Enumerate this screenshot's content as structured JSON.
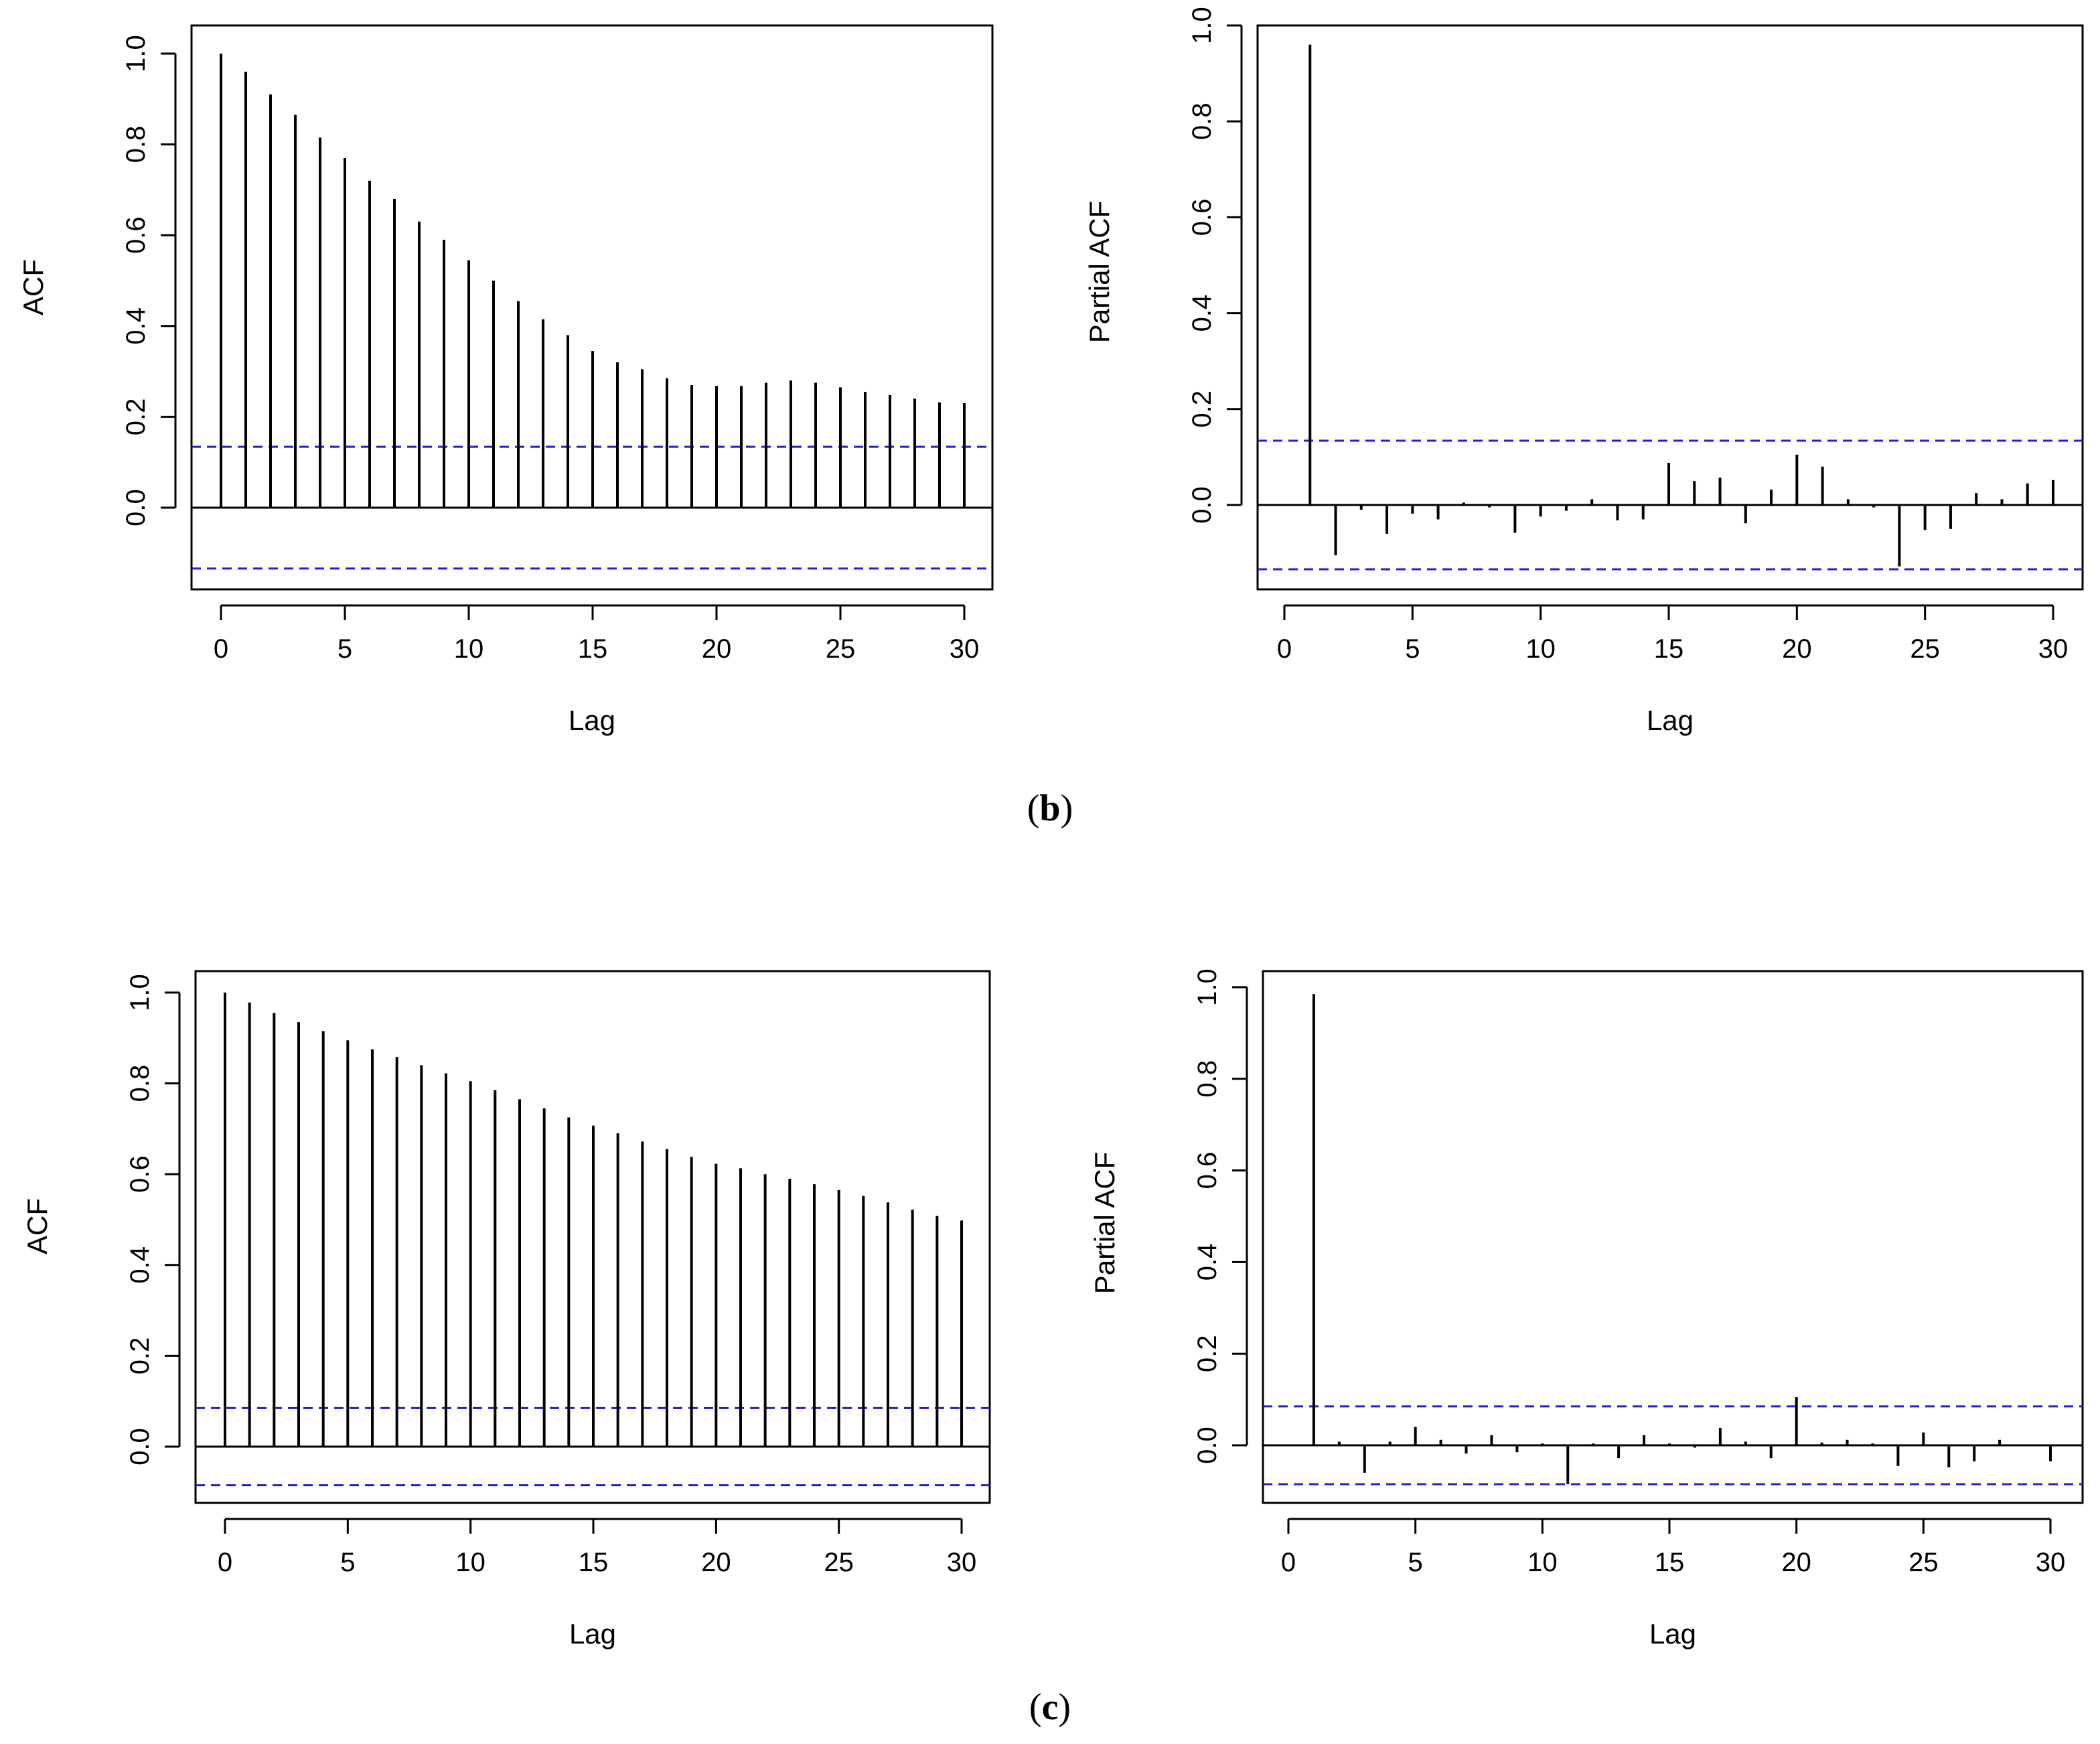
{
  "captions": {
    "b": {
      "open": "(",
      "letter": "b",
      "close": ")"
    },
    "c": {
      "open": "(",
      "letter": "c",
      "close": ")"
    }
  },
  "colors": {
    "bar": "#000000",
    "ci": "#1f1fd6",
    "axis": "#000000"
  },
  "chart_data": [
    {
      "id": "b-acf",
      "type": "bar",
      "title": "",
      "xlabel": "Lag",
      "ylabel": "ACF",
      "xlim": [
        0,
        30
      ],
      "ylim": [
        -0.18,
        1.0
      ],
      "xticks": [
        0,
        5,
        10,
        15,
        20,
        25,
        30
      ],
      "yticks": [
        0.0,
        0.2,
        0.4,
        0.6,
        0.8,
        1.0
      ],
      "ytick_labels": [
        "0.0",
        "0.2",
        "0.4",
        "0.6",
        "0.8",
        "1.0"
      ],
      "ci": 0.134,
      "lags": [
        0,
        1,
        2,
        3,
        4,
        5,
        6,
        7,
        8,
        9,
        10,
        11,
        12,
        13,
        14,
        15,
        16,
        17,
        18,
        19,
        20,
        21,
        22,
        23,
        24,
        25,
        26,
        27,
        28,
        29,
        30
      ],
      "values": [
        1.0,
        0.96,
        0.91,
        0.865,
        0.815,
        0.77,
        0.72,
        0.68,
        0.63,
        0.59,
        0.545,
        0.5,
        0.455,
        0.415,
        0.38,
        0.345,
        0.32,
        0.305,
        0.285,
        0.27,
        0.268,
        0.268,
        0.275,
        0.28,
        0.275,
        0.265,
        0.255,
        0.248,
        0.24,
        0.232,
        0.23
      ]
    },
    {
      "id": "b-pacf",
      "type": "bar",
      "title": "",
      "xlabel": "Lag",
      "ylabel": "Partial ACF",
      "xlim": [
        0,
        30
      ],
      "ylim": [
        -0.18,
        1.0
      ],
      "xticks": [
        0,
        5,
        10,
        15,
        20,
        25,
        30
      ],
      "yticks": [
        0.0,
        0.2,
        0.4,
        0.6,
        0.8,
        1.0
      ],
      "ytick_labels": [
        "0.0",
        "0.2",
        "0.4",
        "0.6",
        "0.8",
        "1.0"
      ],
      "ci": 0.134,
      "lags": [
        1,
        2,
        3,
        4,
        5,
        6,
        7,
        8,
        9,
        10,
        11,
        12,
        13,
        14,
        15,
        16,
        17,
        18,
        19,
        20,
        21,
        22,
        23,
        24,
        25,
        26,
        27,
        28,
        29,
        30
      ],
      "values": [
        0.96,
        -0.105,
        -0.01,
        -0.06,
        -0.018,
        -0.03,
        0.005,
        -0.005,
        -0.058,
        -0.024,
        -0.012,
        0.012,
        -0.032,
        -0.03,
        0.088,
        0.05,
        0.057,
        -0.038,
        0.032,
        0.105,
        0.08,
        0.012,
        -0.005,
        -0.128,
        -0.052,
        -0.05,
        0.025,
        0.012,
        0.045,
        0.052
      ]
    },
    {
      "id": "c-acf",
      "type": "bar",
      "title": "",
      "xlabel": "Lag",
      "ylabel": "ACF",
      "xlim": [
        0,
        30
      ],
      "ylim": [
        -0.12,
        1.05
      ],
      "xticks": [
        0,
        5,
        10,
        15,
        20,
        25,
        30
      ],
      "yticks": [
        0.0,
        0.2,
        0.4,
        0.6,
        0.8,
        1.0
      ],
      "ytick_labels": [
        "0.0",
        "0.2",
        "0.4",
        "0.6",
        "0.8",
        "1.0"
      ],
      "ci": 0.085,
      "lags": [
        0,
        1,
        2,
        3,
        4,
        5,
        6,
        7,
        8,
        9,
        10,
        11,
        12,
        13,
        14,
        15,
        16,
        17,
        18,
        19,
        20,
        21,
        22,
        23,
        24,
        25,
        26,
        27,
        28,
        29,
        30
      ],
      "values": [
        1.0,
        0.978,
        0.955,
        0.935,
        0.915,
        0.895,
        0.875,
        0.858,
        0.84,
        0.822,
        0.805,
        0.785,
        0.765,
        0.745,
        0.725,
        0.707,
        0.69,
        0.672,
        0.655,
        0.638,
        0.623,
        0.613,
        0.6,
        0.59,
        0.578,
        0.565,
        0.552,
        0.538,
        0.522,
        0.508,
        0.498
      ]
    },
    {
      "id": "c-pacf",
      "type": "bar",
      "title": "",
      "xlabel": "Lag",
      "ylabel": "Partial ACF",
      "xlim": [
        0,
        30
      ],
      "ylim": [
        -0.12,
        1.05
      ],
      "xticks": [
        0,
        5,
        10,
        15,
        20,
        25,
        30
      ],
      "yticks": [
        0.0,
        0.2,
        0.4,
        0.6,
        0.8,
        1.0
      ],
      "ytick_labels": [
        "0.0",
        "0.2",
        "0.4",
        "0.6",
        "0.8",
        "1.0"
      ],
      "ci": 0.085,
      "lags": [
        1,
        2,
        3,
        4,
        5,
        6,
        7,
        8,
        9,
        10,
        11,
        12,
        13,
        14,
        15,
        16,
        17,
        18,
        19,
        20,
        21,
        22,
        23,
        24,
        25,
        26,
        27,
        28,
        29,
        30
      ],
      "values": [
        0.985,
        0.008,
        -0.06,
        0.008,
        0.04,
        0.012,
        -0.018,
        0.022,
        -0.015,
        0.004,
        -0.085,
        0.004,
        -0.028,
        0.022,
        0.004,
        -0.005,
        0.038,
        0.008,
        -0.028,
        0.105,
        0.006,
        0.012,
        0.004,
        -0.045,
        0.028,
        -0.048,
        -0.035,
        0.012,
        0.002,
        -0.035
      ]
    }
  ]
}
